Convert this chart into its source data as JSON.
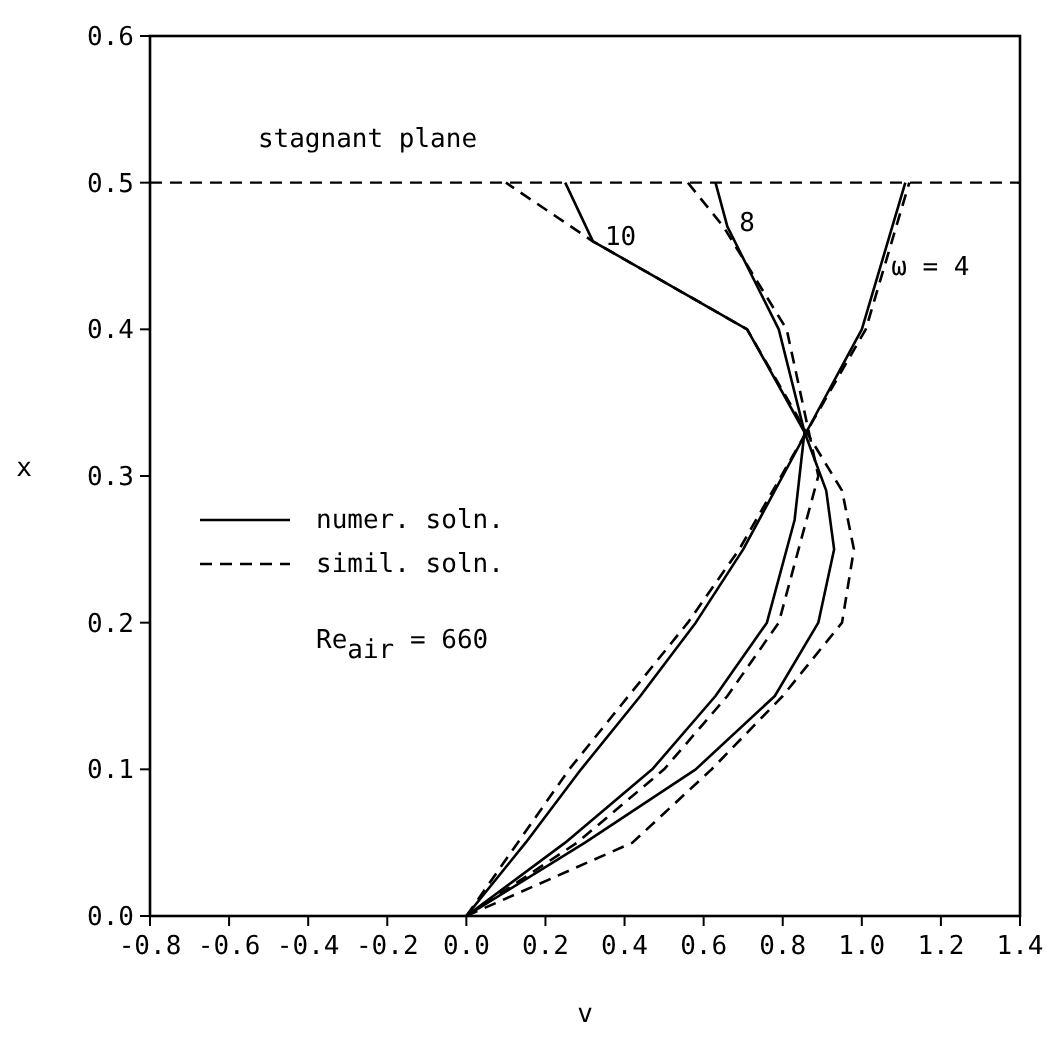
{
  "chart_data": {
    "type": "line",
    "xlabel": "v",
    "ylabel": "x",
    "xlim": [
      -0.8,
      1.4
    ],
    "ylim": [
      0,
      0.6
    ],
    "xticks": [
      {
        "value": -0.8,
        "label": "-0.8"
      },
      {
        "value": -0.6,
        "label": "-0.6"
      },
      {
        "value": -0.4,
        "label": "-0.4"
      },
      {
        "value": -0.2,
        "label": "-0.2"
      },
      {
        "value": 0,
        "label": "0.0"
      },
      {
        "value": 0.2,
        "label": "0.2"
      },
      {
        "value": 0.4,
        "label": "0.4"
      },
      {
        "value": 0.6,
        "label": "0.6"
      },
      {
        "value": 0.8,
        "label": "0.8"
      },
      {
        "value": 1,
        "label": "1.0"
      },
      {
        "value": 1.2,
        "label": "1.2"
      },
      {
        "value": 1.4,
        "label": "1.4"
      }
    ],
    "yticks": [
      {
        "value": 0,
        "label": "0.0"
      },
      0.1,
      0.2,
      0.3,
      0.4,
      0.5,
      0.6
    ],
    "grid": false,
    "legend": "left",
    "marker": "none",
    "series": [
      {
        "name": "numer. soln.",
        "color": "#000000",
        "line_style": "solid",
        "x": [
          0,
          0.15,
          0.29,
          0.44,
          0.58,
          0.7,
          0.86,
          1.0,
          1.11
        ],
        "values": [
          0,
          0.05,
          0.1,
          0.15,
          0.2,
          0.25,
          0.33,
          0.4,
          0.5
        ]
      },
      {
        "color": "#000000",
        "line_style": "solid",
        "x": [
          0,
          0.25,
          0.47,
          0.63,
          0.76,
          0.83,
          0.855,
          0.79,
          0.66,
          0.63
        ],
        "values": [
          0,
          0.05,
          0.1,
          0.15,
          0.2,
          0.27,
          0.33,
          0.4,
          0.47,
          0.5
        ]
      },
      {
        "color": "#000000",
        "line_style": "solid",
        "x": [
          0,
          0.3,
          0.58,
          0.78,
          0.89,
          0.93,
          0.91,
          0.855,
          0.71,
          0.32,
          0.25
        ],
        "values": [
          0,
          0.05,
          0.1,
          0.15,
          0.2,
          0.25,
          0.29,
          0.33,
          0.4,
          0.46,
          0.5
        ]
      },
      {
        "name": "simil. soln.",
        "color": "#000000",
        "line_style": "dashed",
        "x": [
          0,
          0.13,
          0.26,
          0.41,
          0.56,
          0.69,
          0.86,
          1.01,
          1.12
        ],
        "values": [
          0,
          0.05,
          0.1,
          0.15,
          0.2,
          0.25,
          0.33,
          0.4,
          0.5
        ]
      },
      {
        "color": "#000000",
        "line_style": "dashed",
        "x": [
          0,
          0.28,
          0.5,
          0.66,
          0.79,
          0.86,
          0.89,
          0.81,
          0.65,
          0.56
        ],
        "values": [
          0,
          0.05,
          0.1,
          0.15,
          0.2,
          0.27,
          0.3,
          0.4,
          0.47,
          0.5
        ]
      },
      {
        "color": "#000000",
        "line_style": "dashed",
        "x": [
          0,
          0.42,
          0.62,
          0.8,
          0.95,
          0.98,
          0.95,
          0.86,
          0.71,
          0.32,
          0.1
        ],
        "values": [
          0,
          0.05,
          0.1,
          0.15,
          0.2,
          0.25,
          0.29,
          0.33,
          0.4,
          0.46,
          0.5
        ]
      }
    ],
    "ref_lines": [
      {
        "axis": "y",
        "value": 0.5,
        "label": "stagnant plane",
        "line_style": "dashed",
        "color": "#000000"
      }
    ],
    "annotations": [
      {
        "text": "10",
        "x": 0.32,
        "y": 0.46
      },
      {
        "text": "8",
        "x": 0.66,
        "y": 0.47
      },
      {
        "text": "ω = 4",
        "x": 1.044,
        "y": 0.44
      },
      "Re$_{air}$ = 660"
    ]
  }
}
